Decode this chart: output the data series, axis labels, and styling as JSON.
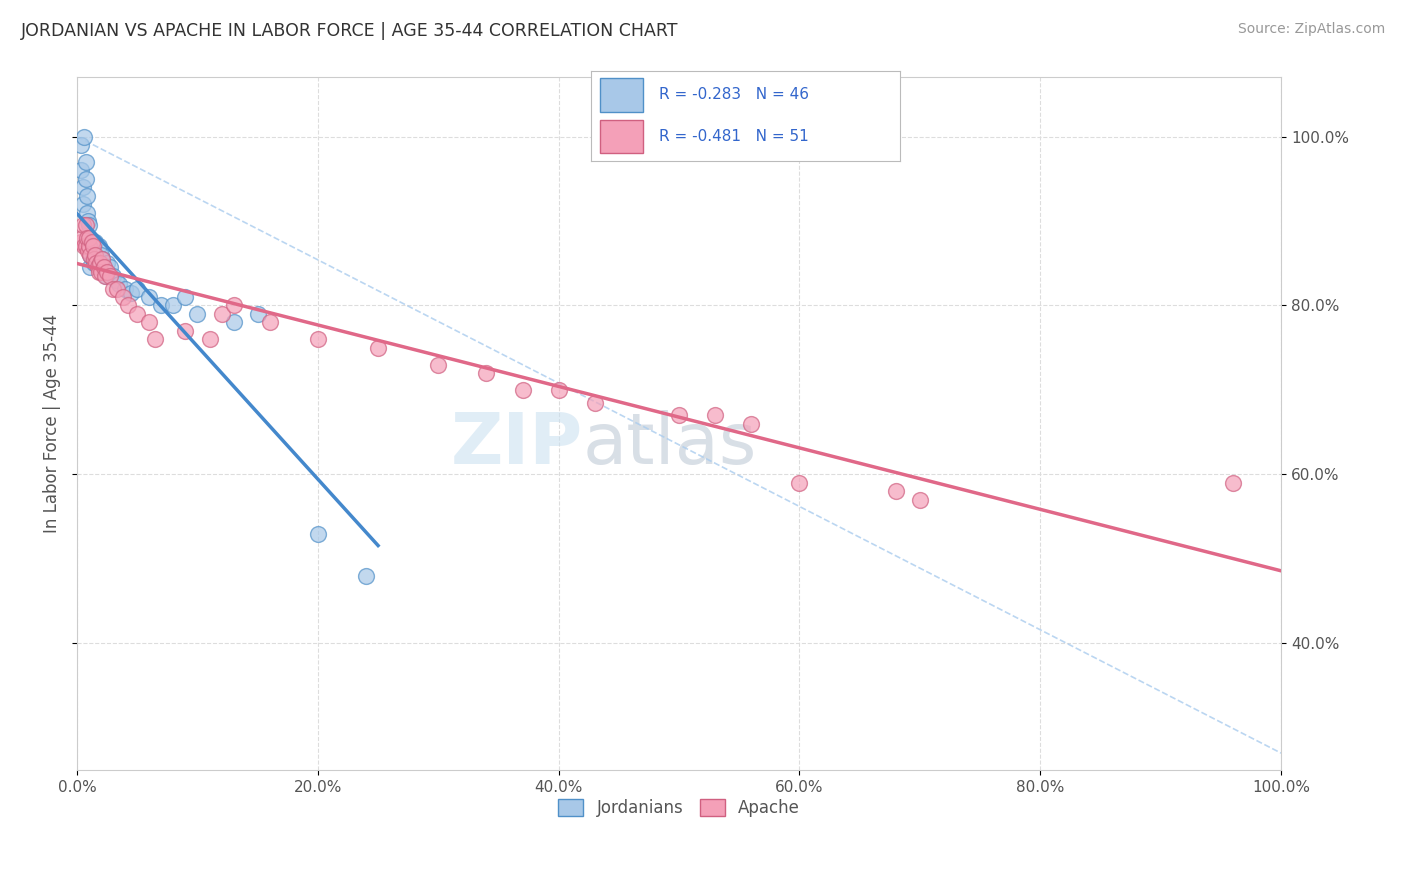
{
  "title": "JORDANIAN VS APACHE IN LABOR FORCE | AGE 35-44 CORRELATION CHART",
  "source": "Source: ZipAtlas.com",
  "ylabel": "In Labor Force | Age 35-44",
  "xlim": [
    0.0,
    1.0
  ],
  "ylim": [
    0.25,
    1.07
  ],
  "blue_R": -0.283,
  "blue_N": 46,
  "pink_R": -0.481,
  "pink_N": 51,
  "blue_color": "#a8c8e8",
  "pink_color": "#f4a0b8",
  "blue_edge_color": "#5090c8",
  "pink_edge_color": "#d06080",
  "blue_line_color": "#4488cc",
  "pink_line_color": "#e06888",
  "ref_line_color": "#aaccee",
  "background_color": "#ffffff",
  "grid_color": "#dddddd",
  "ytick_labels": [
    "40.0%",
    "60.0%",
    "80.0%",
    "100.0%"
  ],
  "ytick_values": [
    0.4,
    0.6,
    0.8,
    1.0
  ],
  "xtick_labels": [
    "0.0%",
    "20.0%",
    "40.0%",
    "60.0%",
    "80.0%",
    "100.0%"
  ],
  "xtick_values": [
    0.0,
    0.2,
    0.4,
    0.6,
    0.8,
    1.0
  ],
  "blue_dots_x": [
    0.003,
    0.003,
    0.005,
    0.005,
    0.006,
    0.007,
    0.007,
    0.008,
    0.008,
    0.009,
    0.009,
    0.01,
    0.01,
    0.011,
    0.011,
    0.012,
    0.013,
    0.013,
    0.014,
    0.015,
    0.015,
    0.016,
    0.017,
    0.018,
    0.019,
    0.02,
    0.021,
    0.022,
    0.024,
    0.025,
    0.027,
    0.03,
    0.032,
    0.035,
    0.04,
    0.045,
    0.05,
    0.06,
    0.07,
    0.08,
    0.09,
    0.1,
    0.13,
    0.15,
    0.2,
    0.24
  ],
  "blue_dots_y": [
    0.99,
    0.96,
    0.94,
    0.92,
    1.0,
    0.97,
    0.95,
    0.93,
    0.91,
    0.9,
    0.88,
    0.895,
    0.875,
    0.86,
    0.845,
    0.87,
    0.865,
    0.855,
    0.85,
    0.875,
    0.86,
    0.855,
    0.85,
    0.87,
    0.845,
    0.86,
    0.855,
    0.84,
    0.835,
    0.85,
    0.845,
    0.835,
    0.83,
    0.825,
    0.82,
    0.815,
    0.82,
    0.81,
    0.8,
    0.8,
    0.81,
    0.79,
    0.78,
    0.79,
    0.53,
    0.48
  ],
  "pink_dots_x": [
    0.003,
    0.004,
    0.005,
    0.006,
    0.007,
    0.007,
    0.008,
    0.009,
    0.01,
    0.01,
    0.011,
    0.012,
    0.013,
    0.014,
    0.015,
    0.016,
    0.017,
    0.018,
    0.019,
    0.02,
    0.021,
    0.022,
    0.023,
    0.025,
    0.027,
    0.03,
    0.033,
    0.038,
    0.042,
    0.05,
    0.06,
    0.065,
    0.09,
    0.11,
    0.12,
    0.13,
    0.16,
    0.2,
    0.25,
    0.3,
    0.34,
    0.37,
    0.4,
    0.43,
    0.5,
    0.53,
    0.56,
    0.6,
    0.68,
    0.7,
    0.96
  ],
  "pink_dots_y": [
    0.875,
    0.88,
    0.895,
    0.87,
    0.895,
    0.87,
    0.88,
    0.865,
    0.87,
    0.88,
    0.86,
    0.875,
    0.87,
    0.855,
    0.86,
    0.85,
    0.845,
    0.84,
    0.85,
    0.84,
    0.855,
    0.845,
    0.835,
    0.84,
    0.835,
    0.82,
    0.82,
    0.81,
    0.8,
    0.79,
    0.78,
    0.76,
    0.77,
    0.76,
    0.79,
    0.8,
    0.78,
    0.76,
    0.75,
    0.73,
    0.72,
    0.7,
    0.7,
    0.685,
    0.67,
    0.67,
    0.66,
    0.59,
    0.58,
    0.57,
    0.59
  ],
  "watermark_zip": "ZIP",
  "watermark_atlas": "atlas",
  "legend_text_color": "#3366cc",
  "legend_bg": "#ffffff"
}
